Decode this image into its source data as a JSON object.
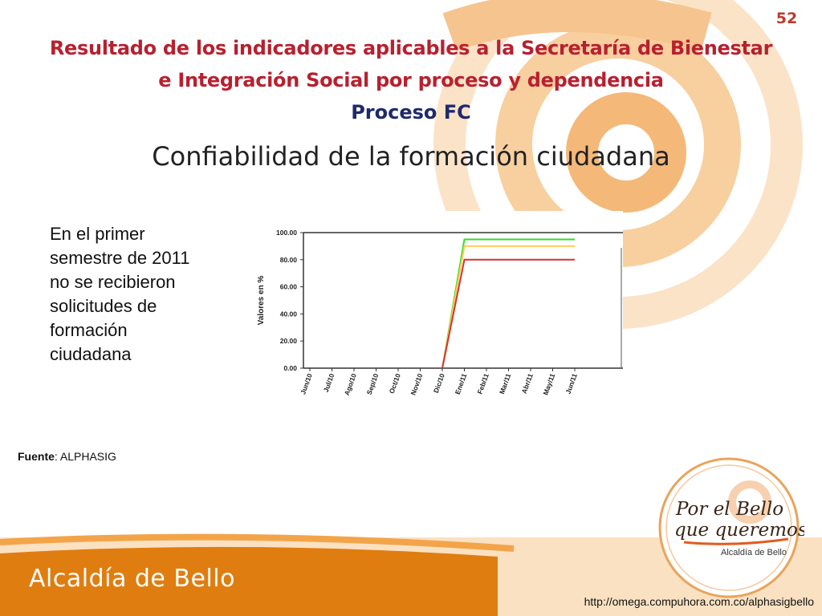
{
  "slide": {
    "number": "52",
    "title": "Resultado de los indicadores aplicables a la Secretaría de Bienestar e Integración Social por proceso y dependencia",
    "subtitle": "Proceso FC",
    "heading": "Confiabilidad de la formación ciudadana"
  },
  "note": "En el primer semestre de 2011 no se recibieron solicitudes de formación ciudadana",
  "source": {
    "label": "Fuente",
    "value": ": ALPHASIG"
  },
  "footer": {
    "org_name": "Alcaldía de Bello",
    "url": "http://omega.compuhora.com.co/alphasigbello"
  },
  "logo": {
    "line1": "Por el Bello",
    "line2": "que queremos",
    "caption": "Alcaldía de Bello"
  },
  "colors": {
    "title_red": "#b8202f",
    "subtitle_navy": "#1f2a6b",
    "orange_swirl": "#f4b879",
    "footer_orange": "#e07d10",
    "series_green": "#33dd22",
    "series_yellow": "#ffcc55",
    "series_red": "#d83030"
  },
  "chart_data": {
    "type": "line",
    "ylabel": "Valores en %",
    "ylim": [
      0,
      100
    ],
    "yticks": [
      "0.00",
      "20.00",
      "40.00",
      "60.00",
      "80.00",
      "100.00"
    ],
    "categories": [
      "Jun/10",
      "Jul/10",
      "Ago/10",
      "Sep/10",
      "Oct/10",
      "Nov/10",
      "Dic/10",
      "Ene/11",
      "Feb/11",
      "Mar/11",
      "Abr/11",
      "May/11",
      "Jun/11"
    ],
    "series": [
      {
        "values": [
          null,
          null,
          null,
          null,
          null,
          null,
          0,
          95,
          95,
          95,
          95,
          95,
          95
        ],
        "color": "#33dd22"
      },
      {
        "values": [
          null,
          null,
          null,
          null,
          null,
          null,
          0,
          90,
          90,
          90,
          90,
          90,
          90
        ],
        "color": "#ffcc55"
      },
      {
        "values": [
          null,
          null,
          null,
          null,
          null,
          null,
          0,
          80,
          80,
          80,
          80,
          80,
          80
        ],
        "color": "#d83030"
      }
    ],
    "grid": false,
    "legend": "none"
  }
}
